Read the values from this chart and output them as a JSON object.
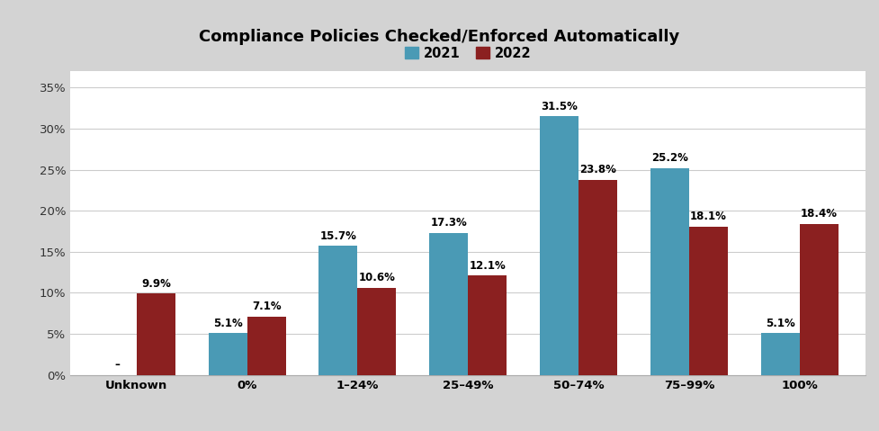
{
  "title": "Compliance Policies Checked/Enforced Automatically",
  "categories": [
    "Unknown",
    "0%",
    "1–24%",
    "25–49%",
    "50–74%",
    "75–99%",
    "100%"
  ],
  "values_2021": [
    null,
    5.1,
    15.7,
    17.3,
    31.5,
    25.2,
    5.1
  ],
  "values_2022": [
    9.9,
    7.1,
    10.6,
    12.1,
    23.8,
    18.1,
    18.4
  ],
  "labels_2021": [
    "–",
    "5.1%",
    "15.7%",
    "17.3%",
    "31.5%",
    "25.2%",
    "5.1%"
  ],
  "labels_2022": [
    "9.9%",
    "7.1%",
    "10.6%",
    "12.1%",
    "23.8%",
    "18.1%",
    "18.4%"
  ],
  "color_2021": "#4a9ab5",
  "color_2022": "#8b2020",
  "yticks": [
    0,
    5,
    10,
    15,
    20,
    25,
    30,
    35
  ],
  "ytick_labels": [
    "0%",
    "5%",
    "10%",
    "15%",
    "20%",
    "25%",
    "30%",
    "35%"
  ],
  "ylim": [
    0,
    37
  ],
  "title_fontsize": 13,
  "label_fontsize": 8.5,
  "tick_fontsize": 9.5,
  "legend_fontsize": 10.5,
  "bar_width": 0.35,
  "title_bg_color": "#cccccc",
  "plot_bg_color": "#ffffff",
  "outer_bg_color": "#d3d3d3",
  "grid_color": "#cccccc",
  "border_color": "#aaaaaa"
}
